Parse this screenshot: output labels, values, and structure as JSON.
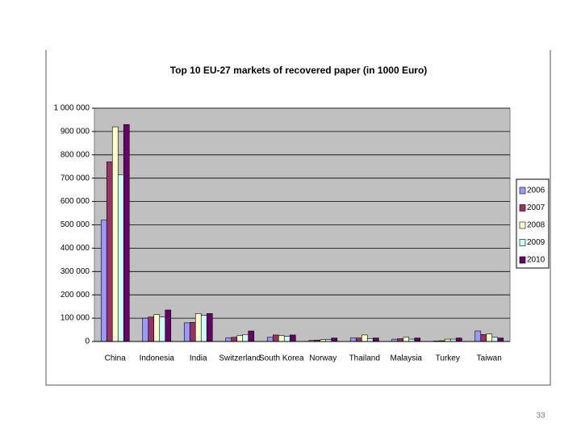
{
  "chart_data": {
    "type": "bar",
    "title": "Top 10 EU-27 markets of recovered paper (in 1000 Euro)",
    "categories": [
      "China",
      "Indonesia",
      "India",
      "Switzerland",
      "South Korea",
      "Norway",
      "Thailand",
      "Malaysia",
      "Turkey",
      "Taiwan"
    ],
    "series": [
      {
        "name": "2006",
        "color": "#9999ff",
        "values": [
          520000,
          100000,
          80000,
          15000,
          18000,
          5000,
          15000,
          10000,
          2000,
          45000
        ]
      },
      {
        "name": "2007",
        "color": "#993366",
        "values": [
          770000,
          105000,
          82000,
          18000,
          28000,
          6000,
          15000,
          12000,
          3000,
          30000
        ]
      },
      {
        "name": "2008",
        "color": "#ffffcc",
        "values": [
          920000,
          115000,
          120000,
          25000,
          25000,
          8000,
          28000,
          18000,
          10000,
          32000
        ]
      },
      {
        "name": "2009",
        "color": "#ccffff",
        "values": [
          715000,
          105000,
          112000,
          30000,
          22000,
          8000,
          12000,
          10000,
          10000,
          18000
        ]
      },
      {
        "name": "2010",
        "color": "#660066",
        "values": [
          930000,
          135000,
          120000,
          45000,
          28000,
          15000,
          15000,
          15000,
          15000,
          15000
        ]
      }
    ],
    "ylim": [
      0,
      1000000
    ],
    "yticks": [
      0,
      {
        "value": 100000,
        "label": "100 000"
      },
      {
        "value": 200000,
        "label": "200 000"
      },
      {
        "value": 300000,
        "label": "300 000"
      },
      {
        "value": 400000,
        "label": "400 000"
      },
      {
        "value": 500000,
        "label": "500 000"
      },
      {
        "value": 600000,
        "label": "600 000"
      },
      {
        "value": 700000,
        "label": "700 000"
      },
      {
        "value": 800000,
        "label": "800 000"
      },
      {
        "value": 900000,
        "label": "900 000"
      },
      {
        "value": 1000000,
        "label": "1 000 000"
      }
    ],
    "grid": true,
    "legend": "right"
  },
  "page_number": "33"
}
